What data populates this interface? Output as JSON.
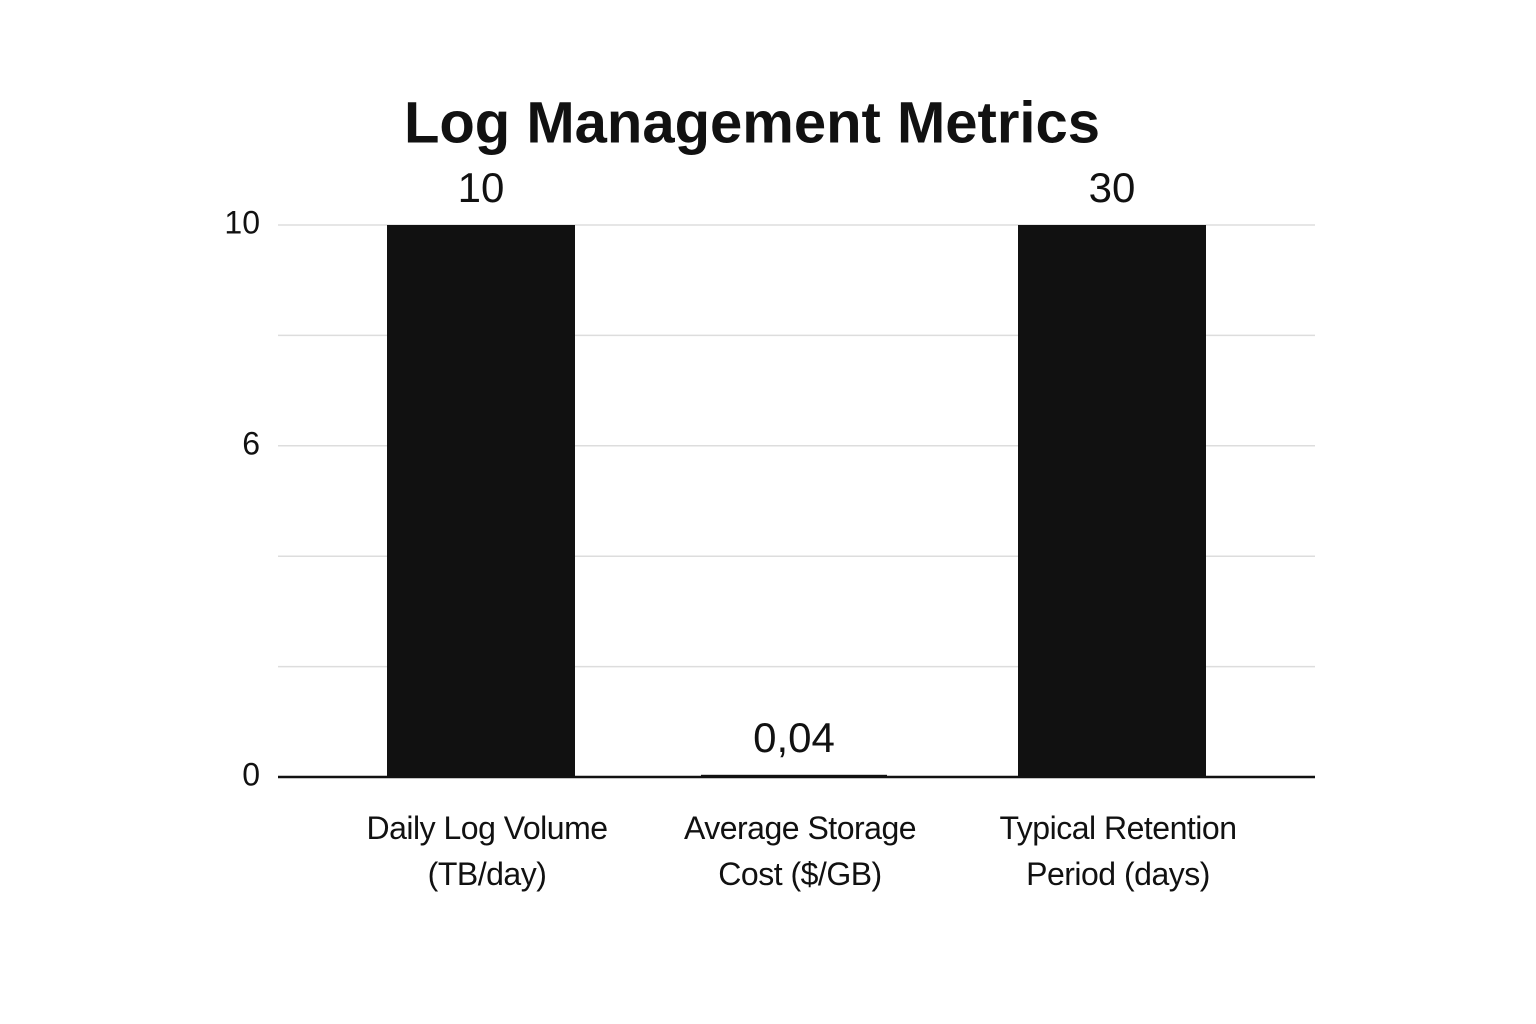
{
  "chart_data": {
    "type": "bar",
    "title": "Log Management Metrics",
    "categories": [
      "Daily Log Volume (TB/day)",
      "Average Storage Cost ($/GB)",
      "Typical Retention Period (days)"
    ],
    "values": [
      10,
      0.04,
      30
    ],
    "value_labels": [
      "10",
      "0,04",
      "30"
    ],
    "color": "#111111",
    "ylim": [
      0,
      10
    ],
    "yticks": [
      0,
      6,
      10
    ],
    "minor_yticks": [
      2,
      4,
      8
    ],
    "grid": true
  }
}
